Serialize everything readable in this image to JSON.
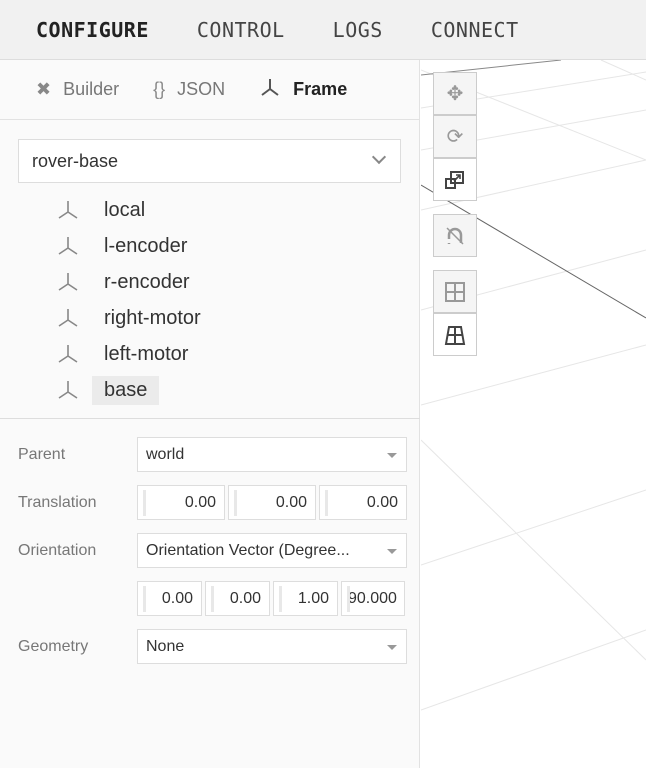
{
  "header": {
    "tabs": [
      {
        "label": "CONFIGURE",
        "active": true
      },
      {
        "label": "CONTROL"
      },
      {
        "label": "LOGS"
      },
      {
        "label": "CONNECT"
      }
    ]
  },
  "subtabs": [
    {
      "label": "Builder",
      "icon": "tools-icon"
    },
    {
      "label": "JSON",
      "icon": "{}"
    },
    {
      "label": "Frame",
      "icon": "frame-axes-icon",
      "active": true
    }
  ],
  "component_select": {
    "value": "rover-base"
  },
  "frames": [
    "local",
    "l-encoder",
    "r-encoder",
    "right-motor",
    "left-motor",
    "base"
  ],
  "selected_frame": "base",
  "form": {
    "parent_label": "Parent",
    "parent_value": "world",
    "translation_label": "Translation",
    "translation": [
      "0.00",
      "0.00",
      "0.00"
    ],
    "orientation_label": "Orientation",
    "orientation_value": "Orientation Vector (Degree...",
    "orientation": [
      "0.00",
      "0.00",
      "1.00",
      "90.000"
    ],
    "geometry_label": "Geometry",
    "geometry_value": "None"
  },
  "toolbar": [
    "move-icon",
    "rotate-icon",
    "scale-icon",
    "snap-off-icon",
    "grid-top-icon",
    "grid-perspective-icon"
  ]
}
